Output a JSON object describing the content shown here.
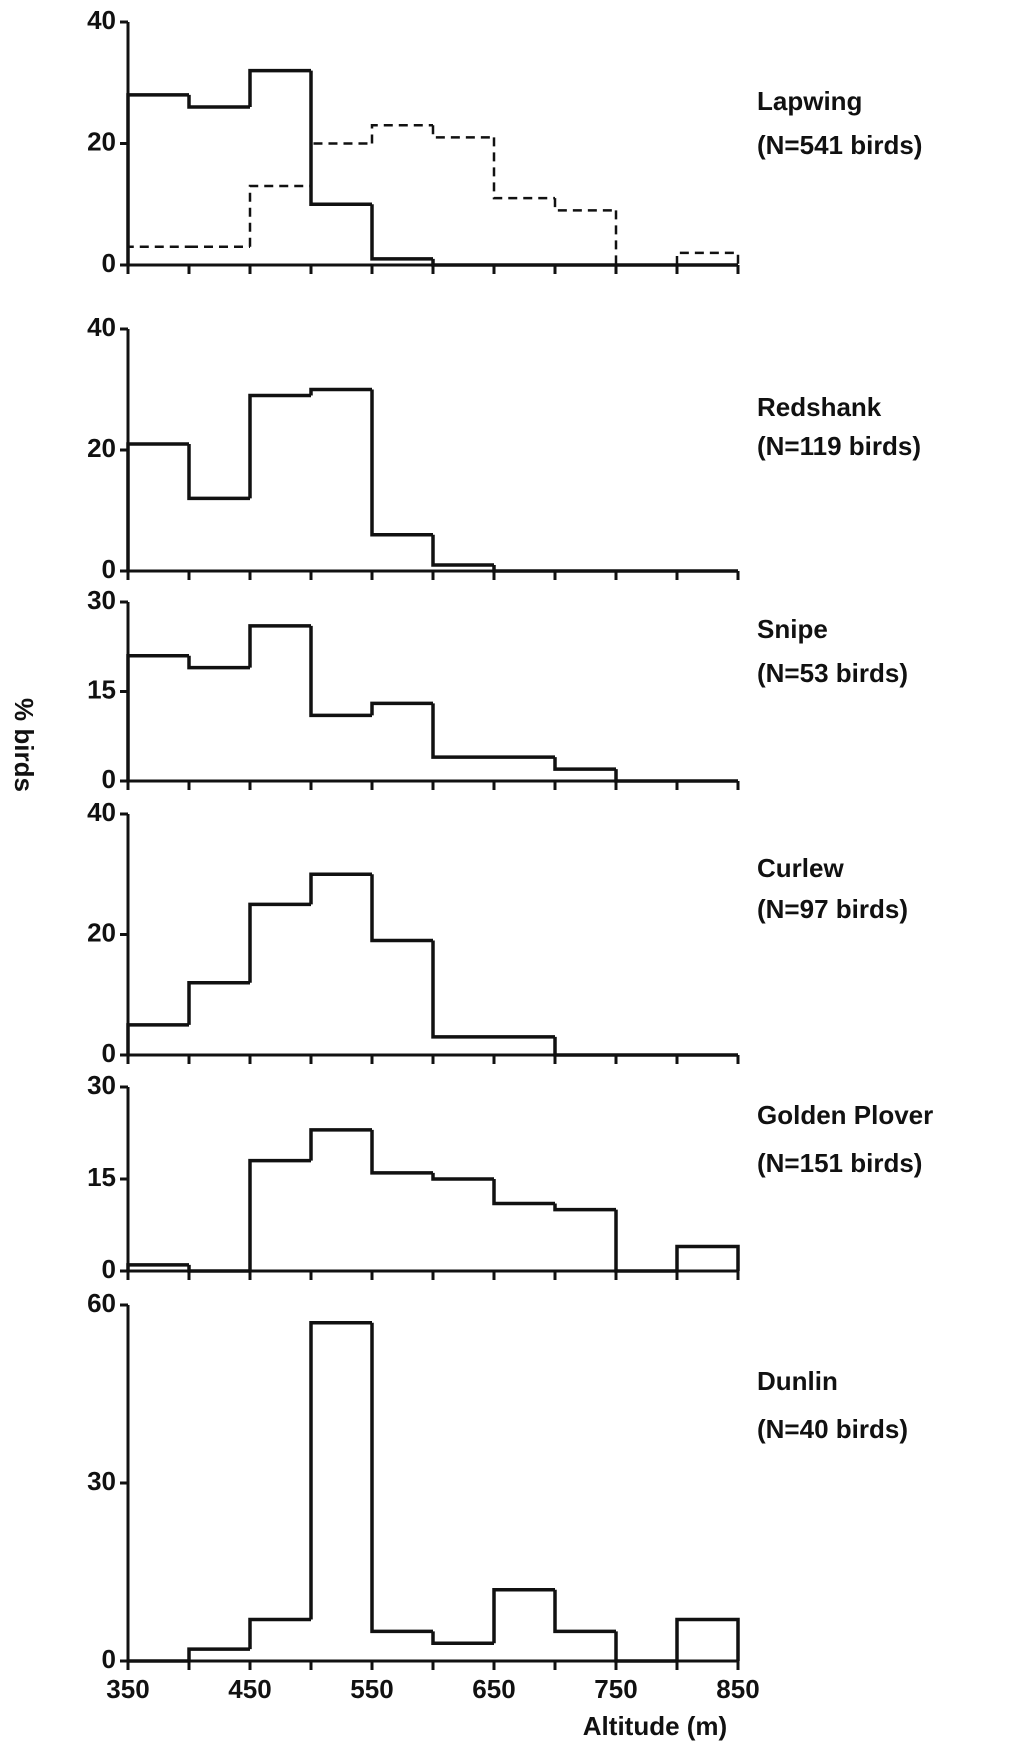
{
  "y_label": "% birds",
  "x_label": "Altitude (m)",
  "chart_data": [
    {
      "type": "histogram",
      "title": "Lapwing",
      "subtitle": "(N=541 birds)",
      "bins": [
        350,
        400,
        450,
        500,
        550,
        600,
        650,
        700,
        750,
        800,
        850
      ],
      "series": [
        {
          "values": [
            28,
            26,
            32,
            10,
            1,
            0,
            0,
            0,
            0,
            0
          ],
          "style": "solid"
        },
        {
          "values": [
            3,
            3,
            13,
            20,
            23,
            21,
            11,
            9,
            0,
            2
          ],
          "style": "dashed"
        }
      ],
      "xlim": [
        350,
        850
      ],
      "xticks": [
        350,
        400,
        450,
        500,
        550,
        600,
        650,
        700,
        750,
        800,
        850
      ],
      "ylim": [
        0,
        40
      ],
      "yticks": [
        0,
        20,
        40
      ]
    },
    {
      "type": "histogram",
      "title": "Redshank",
      "subtitle": "(N=119 birds)",
      "bins": [
        350,
        400,
        450,
        500,
        550,
        600,
        650,
        700,
        750,
        800,
        850
      ],
      "series": [
        {
          "values": [
            21,
            12,
            29,
            30,
            6,
            1,
            0,
            0,
            0,
            0
          ],
          "style": "solid"
        }
      ],
      "xlim": [
        350,
        850
      ],
      "xticks": [
        350,
        400,
        450,
        500,
        550,
        600,
        650,
        700,
        750,
        800,
        850
      ],
      "ylim": [
        0,
        40
      ],
      "yticks": [
        0,
        20,
        40
      ]
    },
    {
      "type": "histogram",
      "title": "Snipe",
      "subtitle": "(N=53 birds)",
      "bins": [
        350,
        400,
        450,
        500,
        550,
        600,
        650,
        700,
        750,
        800,
        850
      ],
      "series": [
        {
          "values": [
            21,
            19,
            26,
            11,
            13,
            4,
            4,
            2,
            0,
            0
          ],
          "style": "solid"
        }
      ],
      "xlim": [
        350,
        850
      ],
      "xticks": [
        350,
        400,
        450,
        500,
        550,
        600,
        650,
        700,
        750,
        800,
        850
      ],
      "ylim": [
        0,
        30
      ],
      "yticks": [
        0,
        15,
        30
      ]
    },
    {
      "type": "histogram",
      "title": "Curlew",
      "subtitle": "(N=97 birds)",
      "bins": [
        350,
        400,
        450,
        500,
        550,
        600,
        650,
        700,
        750,
        800,
        850
      ],
      "series": [
        {
          "values": [
            5,
            12,
            25,
            30,
            19,
            3,
            3,
            0,
            0,
            0
          ],
          "style": "solid"
        }
      ],
      "xlim": [
        350,
        850
      ],
      "xticks": [
        350,
        400,
        450,
        500,
        550,
        600,
        650,
        700,
        750,
        800,
        850
      ],
      "ylim": [
        0,
        40
      ],
      "yticks": [
        0,
        20,
        40
      ]
    },
    {
      "type": "histogram",
      "title": "Golden Plover",
      "subtitle": "(N=151 birds)",
      "bins": [
        350,
        400,
        450,
        500,
        550,
        600,
        650,
        700,
        750,
        800,
        850
      ],
      "series": [
        {
          "values": [
            1,
            0,
            18,
            23,
            16,
            15,
            11,
            10,
            0,
            4
          ],
          "style": "solid"
        }
      ],
      "xlim": [
        350,
        850
      ],
      "xticks": [
        350,
        400,
        450,
        500,
        550,
        600,
        650,
        700,
        750,
        800,
        850
      ],
      "ylim": [
        0,
        30
      ],
      "yticks": [
        0,
        15,
        30
      ]
    },
    {
      "type": "histogram",
      "title": "Dunlin",
      "subtitle": "(N=40 birds)",
      "bins": [
        350,
        400,
        450,
        500,
        550,
        600,
        650,
        700,
        750,
        800,
        850
      ],
      "series": [
        {
          "values": [
            0,
            2,
            7,
            57,
            5,
            3,
            12,
            5,
            0,
            7
          ],
          "style": "solid"
        }
      ],
      "xlim": [
        350,
        850
      ],
      "xticks": [
        350,
        400,
        450,
        500,
        550,
        600,
        650,
        700,
        750,
        800,
        850
      ],
      "xtick_labels": [
        350,
        450,
        550,
        650,
        750,
        850
      ],
      "ylim": [
        0,
        60
      ],
      "yticks": [
        0,
        30,
        60
      ]
    }
  ]
}
